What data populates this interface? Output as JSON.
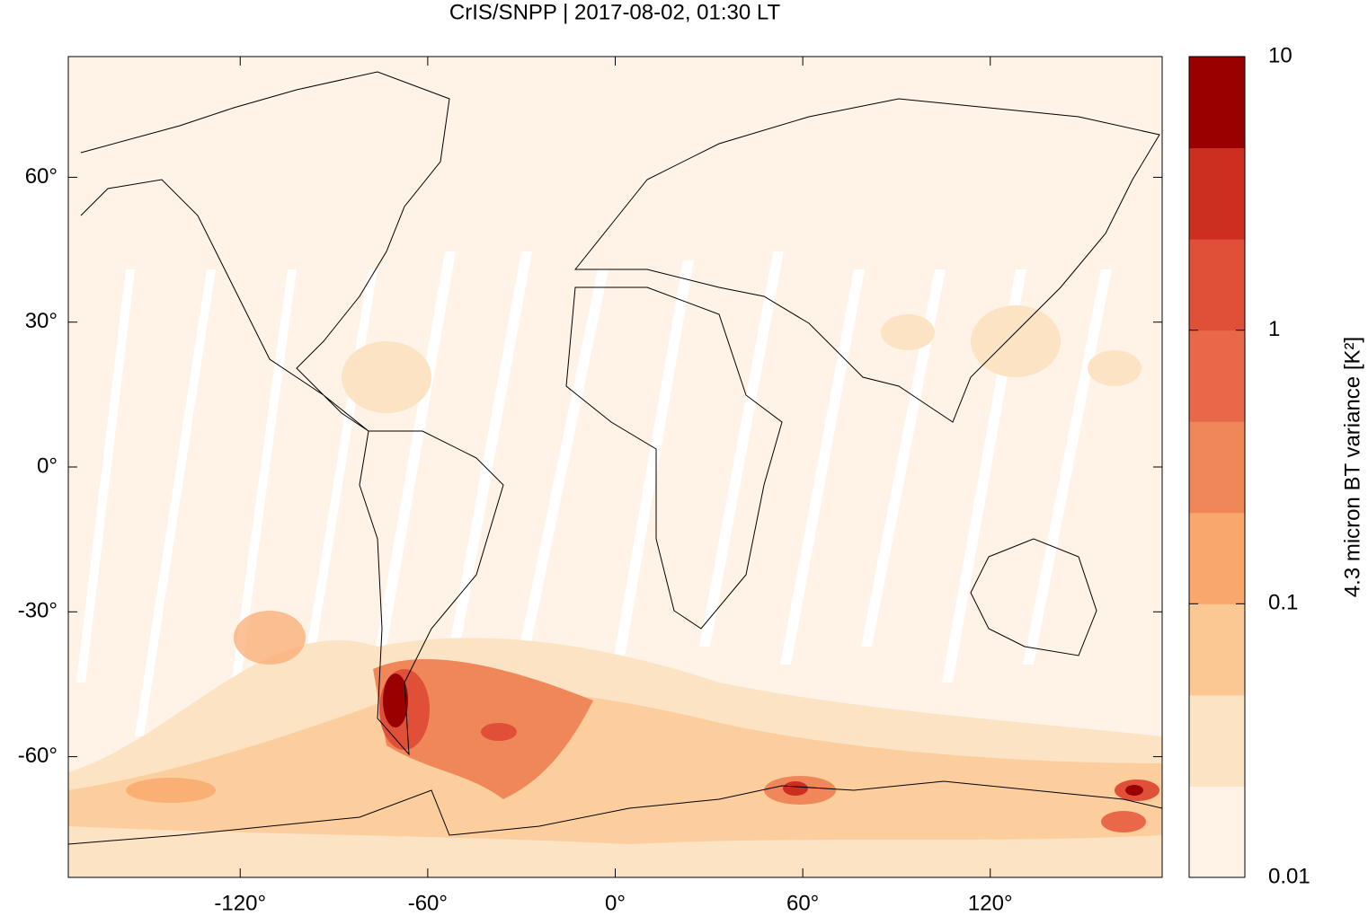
{
  "chart_data": {
    "type": "map",
    "title": "CrIS/SNPP | 2017-08-02, 01:30 LT",
    "xlim": [
      -175,
      175
    ],
    "ylim": [
      -85,
      85
    ],
    "xticks": [
      {
        "value": -120,
        "label": "-120°"
      },
      {
        "value": -60,
        "label": "-60°"
      },
      {
        "value": 0,
        "label": "0°"
      },
      {
        "value": 60,
        "label": "60°"
      },
      {
        "value": 120,
        "label": "120°"
      }
    ],
    "yticks": [
      {
        "value": -60,
        "label": "-60°"
      },
      {
        "value": -30,
        "label": "-30°"
      },
      {
        "value": 0,
        "label": "0°"
      },
      {
        "value": 30,
        "label": "30°"
      },
      {
        "value": 60,
        "label": "60°"
      }
    ],
    "colorbar": {
      "label": "4.3 micron BT variance [K²]",
      "log_scale": true,
      "clim": [
        0.01,
        10
      ],
      "ticks": [
        0.01,
        0.1,
        1,
        10
      ],
      "colors": [
        "#fef3e6",
        "#fce3c4",
        "#fbc894",
        "#f9a76c",
        "#f08759",
        "#e9684a",
        "#e04f37",
        "#cc2e1f",
        "#990000"
      ]
    }
  }
}
